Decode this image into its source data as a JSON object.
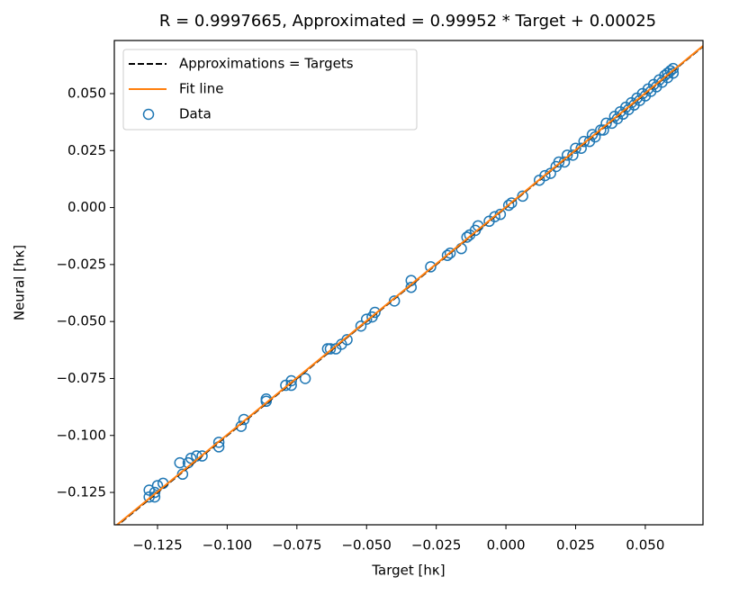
{
  "chart_data": {
    "type": "scatter",
    "title": "R = 0.9997665, Approximated = 0.99952 * Target + 0.00025",
    "x_label": "Target [hκ]",
    "y_label": "Neural [hκ]",
    "xlim": [
      -0.1405,
      0.0707
    ],
    "ylim": [
      -0.1392,
      0.0733
    ],
    "xticks": [
      {
        "value": -0.125,
        "label": "−0.125"
      },
      {
        "value": -0.1,
        "label": "−0.100"
      },
      {
        "value": -0.075,
        "label": "−0.075"
      },
      {
        "value": -0.05,
        "label": "−0.050"
      },
      {
        "value": -0.025,
        "label": "−0.025"
      },
      {
        "value": 0,
        "label": "0.000"
      },
      {
        "value": 0.025,
        "label": "0.025"
      },
      {
        "value": 0.05,
        "label": "0.050"
      }
    ],
    "yticks": [
      {
        "value": -0.125,
        "label": "−0.125"
      },
      {
        "value": -0.1,
        "label": "−0.100"
      },
      {
        "value": -0.075,
        "label": "−0.075"
      },
      {
        "value": -0.05,
        "label": "−0.050"
      },
      {
        "value": -0.025,
        "label": "−0.025"
      },
      {
        "value": 0,
        "label": "0.000"
      },
      {
        "value": 0.025,
        "label": "0.025"
      },
      {
        "value": 0.05,
        "label": "0.050"
      }
    ],
    "legend": "upper left",
    "series": [
      {
        "name": "Approximations = Targets",
        "kind": "line",
        "color": "#000000",
        "dashed": true,
        "x": [
          -0.1405,
          0.0707
        ],
        "values": [
          -0.1405,
          0.0707
        ]
      },
      {
        "name": "Fit line",
        "kind": "line",
        "color": "#ff7f0e",
        "dashed": false,
        "x": [
          -0.1405,
          0.0707
        ],
        "values": [
          -0.14018,
          0.07092
        ]
      },
      {
        "name": "Data",
        "kind": "scatter",
        "color": "#1f77b4",
        "x": [
          -0.128,
          -0.128,
          -0.126,
          -0.126,
          -0.125,
          -0.123,
          -0.117,
          -0.116,
          -0.114,
          -0.113,
          -0.111,
          -0.109,
          -0.103,
          -0.103,
          -0.095,
          -0.094,
          -0.086,
          -0.086,
          -0.079,
          -0.077,
          -0.077,
          -0.072,
          -0.064,
          -0.063,
          -0.061,
          -0.059,
          -0.057,
          -0.052,
          -0.05,
          -0.048,
          -0.047,
          -0.04,
          -0.034,
          -0.034,
          -0.027,
          -0.021,
          -0.02,
          -0.016,
          -0.014,
          -0.013,
          -0.011,
          -0.01,
          -0.006,
          -0.004,
          -0.002,
          0.001,
          0.002,
          0.006,
          0.012,
          0.014,
          0.016,
          0.018,
          0.019,
          0.021,
          0.022,
          0.024,
          0.025,
          0.027,
          0.028,
          0.03,
          0.031,
          0.032,
          0.034,
          0.035,
          0.036,
          0.038,
          0.039,
          0.04,
          0.041,
          0.042,
          0.043,
          0.044,
          0.045,
          0.046,
          0.047,
          0.048,
          0.049,
          0.05,
          0.051,
          0.052,
          0.053,
          0.054,
          0.055,
          0.056,
          0.057,
          0.058,
          0.059,
          0.06,
          0.06,
          0.058
        ],
        "values": [
          -0.124,
          -0.127,
          -0.127,
          -0.125,
          -0.122,
          -0.121,
          -0.112,
          -0.117,
          -0.112,
          -0.11,
          -0.109,
          -0.109,
          -0.103,
          -0.105,
          -0.096,
          -0.093,
          -0.085,
          -0.084,
          -0.078,
          -0.076,
          -0.078,
          -0.075,
          -0.062,
          -0.062,
          -0.062,
          -0.06,
          -0.058,
          -0.052,
          -0.049,
          -0.048,
          -0.046,
          -0.041,
          -0.035,
          -0.032,
          -0.026,
          -0.021,
          -0.02,
          -0.018,
          -0.013,
          -0.012,
          -0.01,
          -0.008,
          -0.006,
          -0.004,
          -0.003,
          0.001,
          0.002,
          0.005,
          0.012,
          0.014,
          0.015,
          0.018,
          0.02,
          0.02,
          0.023,
          0.023,
          0.026,
          0.026,
          0.029,
          0.029,
          0.032,
          0.031,
          0.034,
          0.034,
          0.037,
          0.037,
          0.04,
          0.039,
          0.042,
          0.041,
          0.044,
          0.043,
          0.046,
          0.045,
          0.048,
          0.047,
          0.05,
          0.049,
          0.052,
          0.051,
          0.054,
          0.053,
          0.056,
          0.055,
          0.058,
          0.057,
          0.06,
          0.061,
          0.059,
          0.059
        ]
      }
    ]
  }
}
